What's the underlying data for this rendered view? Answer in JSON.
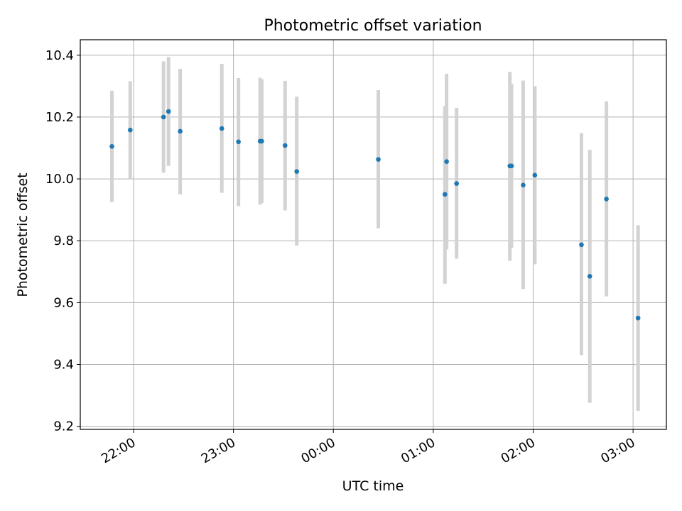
{
  "chart_data": {
    "type": "scatter",
    "title": "Photometric offset variation",
    "xlabel": "UTC time",
    "ylabel": "Photometric offset",
    "x_tick_labels": [
      "22:00",
      "23:00",
      "00:00",
      "01:00",
      "02:00",
      "03:00"
    ],
    "y_tick_labels": [
      "9.2",
      "9.4",
      "9.6",
      "9.8",
      "10.0",
      "10.2",
      "10.4"
    ],
    "ylim": [
      9.19,
      10.45
    ],
    "xlim": [
      "21:28",
      "03:20"
    ],
    "grid": true,
    "error_bars": true,
    "colors": {
      "points": "#1f77b4",
      "error_bars": "#d3d3d3",
      "grid": "#b0b0b0"
    },
    "points": [
      {
        "x": "21:47",
        "y": 10.105,
        "ymin": 9.925,
        "ymax": 10.285
      },
      {
        "x": "21:58",
        "y": 10.158,
        "ymin": 10.0,
        "ymax": 10.316
      },
      {
        "x": "22:18",
        "y": 10.2,
        "ymin": 10.02,
        "ymax": 10.38
      },
      {
        "x": "22:21",
        "y": 10.218,
        "ymin": 10.042,
        "ymax": 10.394
      },
      {
        "x": "22:28",
        "y": 10.154,
        "ymin": 9.95,
        "ymax": 10.356
      },
      {
        "x": "22:53",
        "y": 10.163,
        "ymin": 9.955,
        "ymax": 10.372
      },
      {
        "x": "23:03",
        "y": 10.12,
        "ymin": 9.912,
        "ymax": 10.326
      },
      {
        "x": "23:16",
        "y": 10.122,
        "ymin": 9.917,
        "ymax": 10.327
      },
      {
        "x": "23:17",
        "y": 10.122,
        "ymin": 9.922,
        "ymax": 10.322
      },
      {
        "x": "23:31",
        "y": 10.108,
        "ymin": 9.898,
        "ymax": 10.317
      },
      {
        "x": "23:38",
        "y": 10.024,
        "ymin": 9.784,
        "ymax": 10.266
      },
      {
        "x": "00:27",
        "y": 10.063,
        "ymin": 9.84,
        "ymax": 10.287
      },
      {
        "x": "01:07",
        "y": 9.95,
        "ymin": 9.661,
        "ymax": 10.235
      },
      {
        "x": "01:08",
        "y": 10.056,
        "ymin": 9.772,
        "ymax": 10.34
      },
      {
        "x": "01:14",
        "y": 9.985,
        "ymin": 9.742,
        "ymax": 10.23
      },
      {
        "x": "01:46",
        "y": 10.042,
        "ymin": 9.735,
        "ymax": 10.346
      },
      {
        "x": "01:47",
        "y": 10.042,
        "ymin": 9.777,
        "ymax": 10.307
      },
      {
        "x": "01:54",
        "y": 9.98,
        "ymin": 9.644,
        "ymax": 10.318
      },
      {
        "x": "02:01",
        "y": 10.012,
        "ymin": 9.724,
        "ymax": 10.3
      },
      {
        "x": "02:29",
        "y": 9.787,
        "ymin": 9.43,
        "ymax": 10.148
      },
      {
        "x": "02:34",
        "y": 9.685,
        "ymin": 9.276,
        "ymax": 10.094
      },
      {
        "x": "02:44",
        "y": 9.935,
        "ymin": 9.62,
        "ymax": 10.251
      },
      {
        "x": "03:03",
        "y": 9.55,
        "ymin": 9.25,
        "ymax": 9.85
      }
    ]
  }
}
